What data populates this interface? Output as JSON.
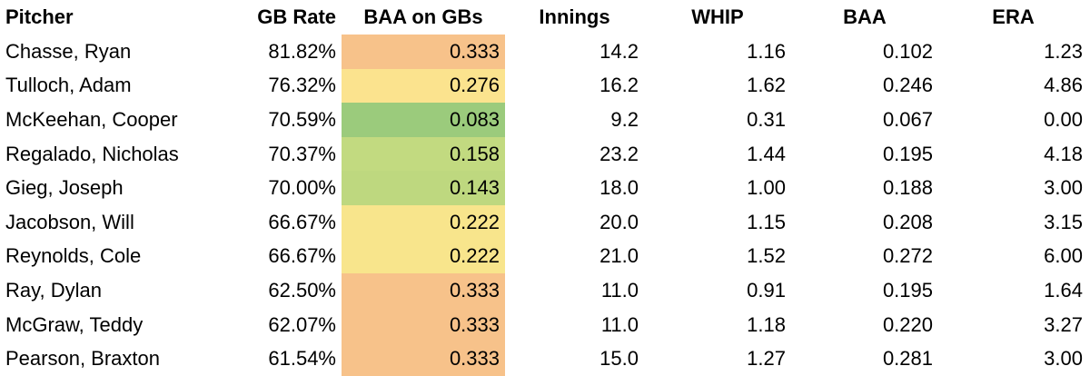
{
  "headers": {
    "pitcher": "Pitcher",
    "gb_rate": "GB Rate",
    "baa_on_gbs": "BAA on GBs",
    "innings": "Innings",
    "whip": "WHIP",
    "baa": "BAA",
    "era": "ERA"
  },
  "heat_colors": {
    "orange": "#f7c28a",
    "yellow": "#fbe38e",
    "light_green": "#c2da80",
    "green": "#9bcb7c"
  },
  "rows": [
    {
      "pitcher": "Chasse, Ryan",
      "gb_rate": "81.82%",
      "baa_on_gbs": "0.333",
      "innings": "14.2",
      "whip": "1.16",
      "baa": "0.102",
      "era": "1.23",
      "heat": "#f7c28a"
    },
    {
      "pitcher": "Tulloch, Adam",
      "gb_rate": "76.32%",
      "baa_on_gbs": "0.276",
      "innings": "16.2",
      "whip": "1.62",
      "baa": "0.246",
      "era": "4.86",
      "heat": "#fbe38e"
    },
    {
      "pitcher": "McKeehan, Cooper",
      "gb_rate": "70.59%",
      "baa_on_gbs": "0.083",
      "innings": "9.2",
      "whip": "0.31",
      "baa": "0.067",
      "era": "0.00",
      "heat": "#9bcb7c"
    },
    {
      "pitcher": "Regalado, Nicholas",
      "gb_rate": "70.37%",
      "baa_on_gbs": "0.158",
      "innings": "23.2",
      "whip": "1.44",
      "baa": "0.195",
      "era": "4.18",
      "heat": "#c2da80"
    },
    {
      "pitcher": "Gieg, Joseph",
      "gb_rate": "70.00%",
      "baa_on_gbs": "0.143",
      "innings": "18.0",
      "whip": "1.00",
      "baa": "0.188",
      "era": "3.00",
      "heat": "#bed87f"
    },
    {
      "pitcher": "Jacobson, Will",
      "gb_rate": "66.67%",
      "baa_on_gbs": "0.222",
      "innings": "20.0",
      "whip": "1.15",
      "baa": "0.208",
      "era": "3.15",
      "heat": "#f8e58c"
    },
    {
      "pitcher": "Reynolds, Cole",
      "gb_rate": "66.67%",
      "baa_on_gbs": "0.222",
      "innings": "21.0",
      "whip": "1.52",
      "baa": "0.272",
      "era": "6.00",
      "heat": "#f8e58c"
    },
    {
      "pitcher": "Ray, Dylan",
      "gb_rate": "62.50%",
      "baa_on_gbs": "0.333",
      "innings": "11.0",
      "whip": "0.91",
      "baa": "0.195",
      "era": "1.64",
      "heat": "#f7c28a"
    },
    {
      "pitcher": "McGraw, Teddy",
      "gb_rate": "62.07%",
      "baa_on_gbs": "0.333",
      "innings": "11.0",
      "whip": "1.18",
      "baa": "0.220",
      "era": "3.27",
      "heat": "#f7c28a"
    },
    {
      "pitcher": "Pearson, Braxton",
      "gb_rate": "61.54%",
      "baa_on_gbs": "0.333",
      "innings": "15.0",
      "whip": "1.27",
      "baa": "0.281",
      "era": "3.00",
      "heat": "#f7c28a"
    }
  ]
}
